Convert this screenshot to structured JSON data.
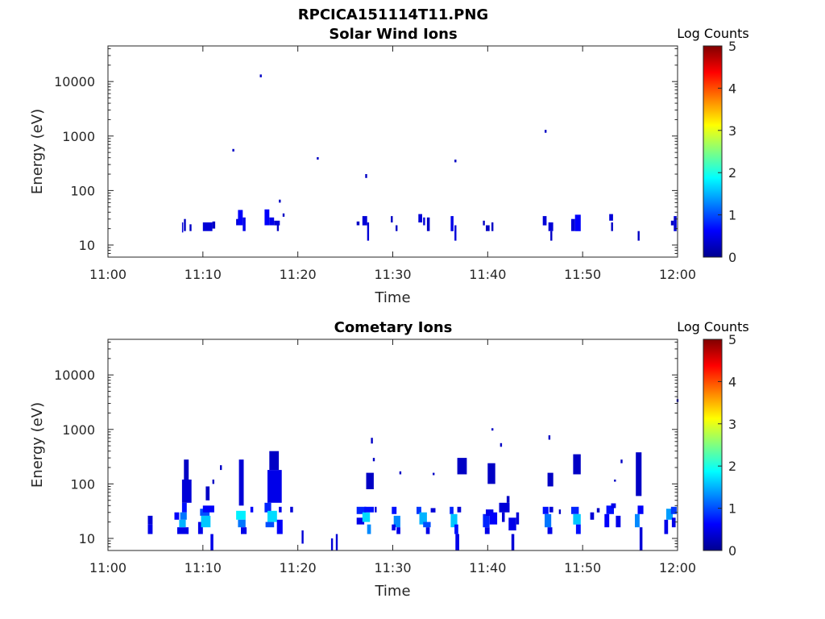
{
  "figure_title": "RPCICA151114T11.PNG",
  "colors": {
    "axis": "#262626",
    "colormap": [
      "#00008f",
      "#0000ff",
      "#0080ff",
      "#00ffff",
      "#80ff80",
      "#ffff00",
      "#ff8000",
      "#ff0000",
      "#800000"
    ]
  },
  "chart_data": [
    {
      "type": "heatmap",
      "title": "Solar Wind Ions",
      "xlabel": "Time",
      "ylabel": "Energy (eV)",
      "x_ticks": [
        "11:00",
        "11:10",
        "11:20",
        "11:30",
        "11:40",
        "11:50",
        "12:00"
      ],
      "x_range_minutes": [
        0,
        60
      ],
      "y_scale": "log",
      "y_range": [
        6,
        45000
      ],
      "y_ticks": [
        10,
        100,
        1000,
        10000
      ],
      "y_tick_labels": [
        "10",
        "100",
        "1000",
        "10000"
      ],
      "colorbar": {
        "label": "Log Counts",
        "range": [
          0,
          5
        ],
        "ticks": [
          "0",
          "1",
          "2",
          "3",
          "4",
          "5"
        ]
      },
      "cells": [
        [
          7.8,
          7.9,
          17,
          26,
          0.4
        ],
        [
          8.0,
          8.2,
          18,
          30,
          0.3
        ],
        [
          8.6,
          8.8,
          18,
          24,
          0.3
        ],
        [
          10.0,
          11.0,
          18,
          26,
          0.4
        ],
        [
          11.0,
          11.3,
          20,
          27,
          0.3
        ],
        [
          13.5,
          13.7,
          23,
          30,
          0.4
        ],
        [
          13.7,
          14.2,
          23,
          44,
          0.6
        ],
        [
          14.2,
          14.5,
          18,
          32,
          0.5
        ],
        [
          16.5,
          17.0,
          23,
          45,
          0.6
        ],
        [
          17.0,
          17.5,
          23,
          32,
          0.5
        ],
        [
          17.5,
          18.1,
          23,
          28,
          0.4
        ],
        [
          17.8,
          18.0,
          18,
          23,
          0.3
        ],
        [
          18.0,
          18.2,
          60,
          68,
          0.3
        ],
        [
          18.4,
          18.6,
          33,
          38,
          0.3
        ],
        [
          26.2,
          26.5,
          23,
          27,
          0.3
        ],
        [
          26.8,
          27.3,
          23,
          34,
          0.4
        ],
        [
          27.3,
          27.5,
          12,
          26,
          0.4
        ],
        [
          29.8,
          30.0,
          26,
          34,
          0.3
        ],
        [
          30.3,
          30.5,
          18,
          23,
          0.3
        ],
        [
          32.7,
          33.1,
          26,
          37,
          0.4
        ],
        [
          33.2,
          33.4,
          23,
          32,
          0.4
        ],
        [
          33.6,
          33.9,
          18,
          32,
          0.3
        ],
        [
          36.1,
          36.4,
          18,
          34,
          0.5
        ],
        [
          36.5,
          36.7,
          12,
          23,
          0.4
        ],
        [
          39.5,
          39.7,
          23,
          28,
          0.3
        ],
        [
          39.8,
          40.2,
          18,
          23,
          0.3
        ],
        [
          40.4,
          40.6,
          18,
          26,
          0.3
        ],
        [
          45.8,
          46.2,
          23,
          34,
          0.4
        ],
        [
          46.4,
          46.9,
          18,
          26,
          0.4
        ],
        [
          46.6,
          46.8,
          12,
          18,
          0.3
        ],
        [
          48.8,
          49.2,
          18,
          30,
          0.4
        ],
        [
          49.2,
          49.8,
          18,
          36,
          0.6
        ],
        [
          52.8,
          53.2,
          28,
          37,
          0.4
        ],
        [
          53.0,
          53.2,
          18,
          26,
          0.3
        ],
        [
          55.8,
          56.0,
          12,
          18,
          0.3
        ],
        [
          59.3,
          59.6,
          23,
          28,
          0.3
        ],
        [
          59.6,
          59.9,
          18,
          34,
          0.4
        ],
        [
          13.1,
          13.3,
          520,
          580,
          0.3
        ],
        [
          16.0,
          16.2,
          12000,
          13500,
          0.3
        ],
        [
          22.0,
          22.2,
          370,
          410,
          0.3
        ],
        [
          27.1,
          27.3,
          170,
          200,
          0.3
        ],
        [
          36.5,
          36.7,
          330,
          370,
          0.3
        ],
        [
          46.0,
          46.2,
          1150,
          1300,
          0.3
        ]
      ]
    },
    {
      "type": "heatmap",
      "title": "Cometary Ions",
      "xlabel": "Time",
      "ylabel": "Energy (eV)",
      "x_ticks": [
        "11:00",
        "11:10",
        "11:20",
        "11:30",
        "11:40",
        "11:50",
        "12:00"
      ],
      "x_range_minutes": [
        0,
        60
      ],
      "y_scale": "log",
      "y_range": [
        6,
        45000
      ],
      "y_ticks": [
        10,
        100,
        1000,
        10000
      ],
      "y_tick_labels": [
        "10",
        "100",
        "1000",
        "10000"
      ],
      "colorbar": {
        "label": "Log Counts",
        "range": [
          0,
          5
        ],
        "ticks": [
          "0",
          "1",
          "2",
          "3",
          "4",
          "5"
        ]
      },
      "cells": [
        [
          4.2,
          4.7,
          12,
          18,
          0.5
        ],
        [
          4.2,
          4.7,
          18,
          26,
          0.4
        ],
        [
          7.0,
          7.5,
          22,
          30,
          0.6
        ],
        [
          7.3,
          8.5,
          12,
          16,
          0.5
        ],
        [
          7.5,
          8.2,
          16,
          22,
          1.5
        ],
        [
          7.6,
          8.3,
          22,
          30,
          1.2
        ],
        [
          7.8,
          8.3,
          30,
          45,
          0.7
        ],
        [
          7.8,
          8.8,
          45,
          120,
          0.4
        ],
        [
          8.0,
          8.5,
          120,
          280,
          0.3
        ],
        [
          9.5,
          10.0,
          12,
          20,
          0.5
        ],
        [
          9.8,
          10.8,
          16,
          26,
          1.6
        ],
        [
          9.7,
          10.7,
          26,
          35,
          1.0
        ],
        [
          10.0,
          11.2,
          30,
          40,
          0.6
        ],
        [
          10.8,
          11.1,
          6,
          12,
          0.5
        ],
        [
          10.3,
          10.7,
          50,
          90,
          0.3
        ],
        [
          11.0,
          11.2,
          100,
          120,
          0.3
        ],
        [
          11.8,
          12.0,
          180,
          220,
          0.3
        ],
        [
          13.5,
          14.5,
          22,
          32,
          1.8
        ],
        [
          13.7,
          14.5,
          16,
          22,
          1.2
        ],
        [
          14.0,
          14.6,
          12,
          16,
          0.5
        ],
        [
          13.8,
          14.3,
          40,
          280,
          0.4
        ],
        [
          15.0,
          15.3,
          30,
          38,
          0.6
        ],
        [
          16.5,
          17.2,
          30,
          45,
          0.8
        ],
        [
          16.8,
          17.8,
          20,
          32,
          1.7
        ],
        [
          16.6,
          17.5,
          16,
          20,
          1.0
        ],
        [
          16.8,
          18.3,
          45,
          180,
          0.5
        ],
        [
          17.0,
          18.0,
          180,
          400,
          0.3
        ],
        [
          17.8,
          18.4,
          12,
          22,
          0.6
        ],
        [
          18.0,
          18.3,
          30,
          38,
          0.5
        ],
        [
          19.2,
          19.5,
          30,
          38,
          0.4
        ],
        [
          20.4,
          20.6,
          8,
          14,
          0.4
        ],
        [
          23.5,
          23.7,
          6,
          10,
          0.4
        ],
        [
          24.0,
          24.2,
          6,
          12,
          0.4
        ],
        [
          26.2,
          27.2,
          28,
          38,
          0.8
        ],
        [
          26.2,
          27.0,
          18,
          24,
          0.5
        ],
        [
          26.8,
          27.6,
          20,
          30,
          1.7
        ],
        [
          27.3,
          27.7,
          12,
          18,
          1.3
        ],
        [
          27.0,
          28.0,
          30,
          38,
          0.7
        ],
        [
          27.2,
          28.0,
          80,
          160,
          0.3
        ],
        [
          27.7,
          27.9,
          550,
          700,
          0.3
        ],
        [
          28.1,
          28.3,
          30,
          38,
          0.4
        ],
        [
          27.9,
          28.1,
          260,
          300,
          0.3
        ],
        [
          29.9,
          30.4,
          28,
          38,
          0.7
        ],
        [
          30.1,
          30.8,
          16,
          26,
          1.3
        ],
        [
          29.9,
          30.3,
          14,
          18,
          0.5
        ],
        [
          30.4,
          30.8,
          12,
          16,
          0.5
        ],
        [
          30.7,
          30.9,
          150,
          170,
          0.3
        ],
        [
          32.5,
          33.0,
          28,
          38,
          0.9
        ],
        [
          32.8,
          33.6,
          18,
          30,
          1.5
        ],
        [
          33.2,
          34.0,
          16,
          20,
          1.0
        ],
        [
          33.5,
          33.9,
          12,
          16,
          0.5
        ],
        [
          34.0,
          34.5,
          30,
          36,
          0.4
        ],
        [
          34.2,
          34.4,
          145,
          160,
          0.3
        ],
        [
          36.0,
          36.4,
          28,
          38,
          0.8
        ],
        [
          36.1,
          36.8,
          16,
          28,
          1.6
        ],
        [
          36.5,
          36.9,
          12,
          18,
          0.7
        ],
        [
          36.6,
          37.0,
          6,
          12,
          0.5
        ],
        [
          36.8,
          37.8,
          150,
          300,
          0.3
        ],
        [
          36.8,
          37.2,
          30,
          38,
          0.4
        ],
        [
          39.5,
          40.2,
          16,
          28,
          0.8
        ],
        [
          39.8,
          40.6,
          26,
          34,
          0.5
        ],
        [
          39.7,
          40.2,
          12,
          16,
          0.5
        ],
        [
          40.2,
          41.0,
          18,
          30,
          0.6
        ],
        [
          40.0,
          40.8,
          100,
          240,
          0.3
        ],
        [
          41.2,
          42.3,
          30,
          45,
          0.4
        ],
        [
          41.5,
          41.8,
          20,
          30,
          0.4
        ],
        [
          42.0,
          42.3,
          45,
          60,
          0.3
        ],
        [
          42.2,
          43.0,
          14,
          24,
          0.5
        ],
        [
          42.5,
          42.8,
          6,
          12,
          0.4
        ],
        [
          43.0,
          43.3,
          18,
          30,
          0.4
        ],
        [
          40.4,
          40.6,
          950,
          1050,
          0.3
        ],
        [
          41.3,
          41.5,
          480,
          560,
          0.3
        ],
        [
          45.8,
          46.4,
          28,
          38,
          0.7
        ],
        [
          46.0,
          46.7,
          16,
          28,
          1.2
        ],
        [
          46.3,
          46.8,
          12,
          16,
          0.5
        ],
        [
          46.5,
          46.9,
          30,
          38,
          0.4
        ],
        [
          46.4,
          46.6,
          650,
          780,
          0.3
        ],
        [
          46.3,
          46.9,
          90,
          160,
          0.3
        ],
        [
          47.5,
          47.7,
          28,
          34,
          0.3
        ],
        [
          48.8,
          49.6,
          28,
          38,
          0.8
        ],
        [
          49.0,
          49.8,
          18,
          28,
          1.6
        ],
        [
          49.3,
          49.8,
          12,
          18,
          0.7
        ],
        [
          49.0,
          49.8,
          150,
          350,
          0.3
        ],
        [
          50.8,
          51.2,
          22,
          30,
          0.4
        ],
        [
          51.5,
          51.8,
          30,
          36,
          0.3
        ],
        [
          52.3,
          52.8,
          16,
          28,
          0.6
        ],
        [
          52.5,
          53.3,
          28,
          40,
          0.7
        ],
        [
          53.0,
          53.5,
          36,
          44,
          0.5
        ],
        [
          53.5,
          54.0,
          16,
          26,
          0.5
        ],
        [
          54.0,
          54.2,
          240,
          280,
          0.3
        ],
        [
          53.3,
          53.5,
          110,
          120,
          0.3
        ],
        [
          55.5,
          56.0,
          16,
          28,
          1.3
        ],
        [
          55.8,
          56.4,
          28,
          40,
          0.6
        ],
        [
          56.0,
          56.3,
          6,
          16,
          0.4
        ],
        [
          55.6,
          56.2,
          60,
          380,
          0.3
        ],
        [
          58.6,
          59.0,
          12,
          22,
          0.5
        ],
        [
          58.8,
          59.5,
          22,
          35,
          1.4
        ],
        [
          59.3,
          59.9,
          28,
          38,
          0.9
        ],
        [
          59.4,
          59.8,
          16,
          24,
          0.5
        ],
        [
          59.9,
          60.1,
          3200,
          3600,
          0.3
        ]
      ]
    }
  ]
}
